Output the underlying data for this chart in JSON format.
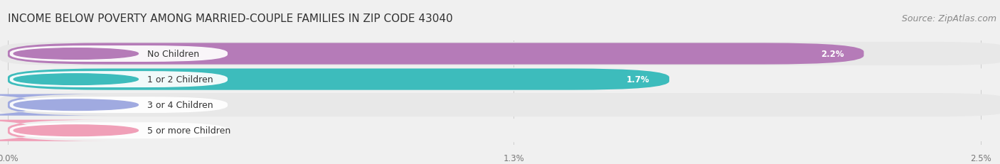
{
  "title": "INCOME BELOW POVERTY AMONG MARRIED-COUPLE FAMILIES IN ZIP CODE 43040",
  "source": "Source: ZipAtlas.com",
  "categories": [
    "No Children",
    "1 or 2 Children",
    "3 or 4 Children",
    "5 or more Children"
  ],
  "values": [
    2.2,
    1.7,
    0.0,
    0.0
  ],
  "bar_colors": [
    "#b57bb8",
    "#3dbcbc",
    "#a0aae0",
    "#f0a0b8"
  ],
  "xlim": [
    0,
    2.5
  ],
  "xticks": [
    0.0,
    1.3,
    2.5
  ],
  "xtick_labels": [
    "0.0%",
    "1.3%",
    "2.5%"
  ],
  "background_color": "#f0f0f0",
  "row_colors": [
    "#e8e8e8",
    "#f0f0f0"
  ],
  "title_fontsize": 11,
  "label_fontsize": 9,
  "value_fontsize": 8.5,
  "source_fontsize": 9
}
